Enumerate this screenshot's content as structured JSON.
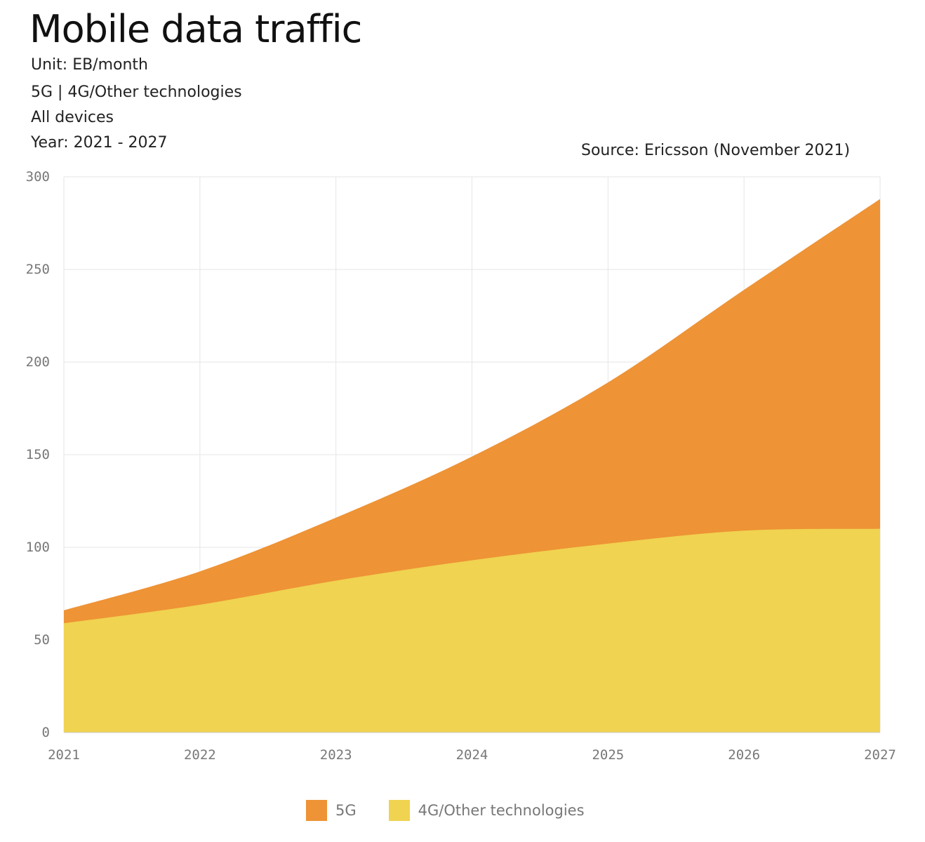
{
  "chart_data": {
    "type": "area",
    "stacked": true,
    "title": "Mobile data traffic",
    "subtitles": [
      "Unit: EB/month",
      "5G | 4G/Other technologies",
      "All devices",
      "Year: 2021 - 2027"
    ],
    "source": "Source: Ericsson (November 2021)",
    "x": [
      2021,
      2022,
      2023,
      2024,
      2025,
      2026,
      2027
    ],
    "x_tick_labels": [
      "2021",
      "2022",
      "2023",
      "2024",
      "2025",
      "2026",
      "2027"
    ],
    "y_ticks": [
      0,
      50,
      100,
      150,
      200,
      250,
      300
    ],
    "y_tick_labels": [
      "0",
      "50",
      "100",
      "150",
      "200",
      "250",
      "300"
    ],
    "ylim": [
      0,
      300
    ],
    "xlabel": "",
    "ylabel": "",
    "grid": true,
    "legend_position": "bottom-center",
    "series": [
      {
        "name": "4G/Other technologies",
        "color": "#f0d350",
        "values": [
          59,
          69,
          82,
          93,
          102,
          109,
          110
        ]
      },
      {
        "name": "5G",
        "color": "#ee9336",
        "values": [
          7,
          18,
          34,
          56,
          87,
          130,
          178
        ]
      }
    ]
  }
}
